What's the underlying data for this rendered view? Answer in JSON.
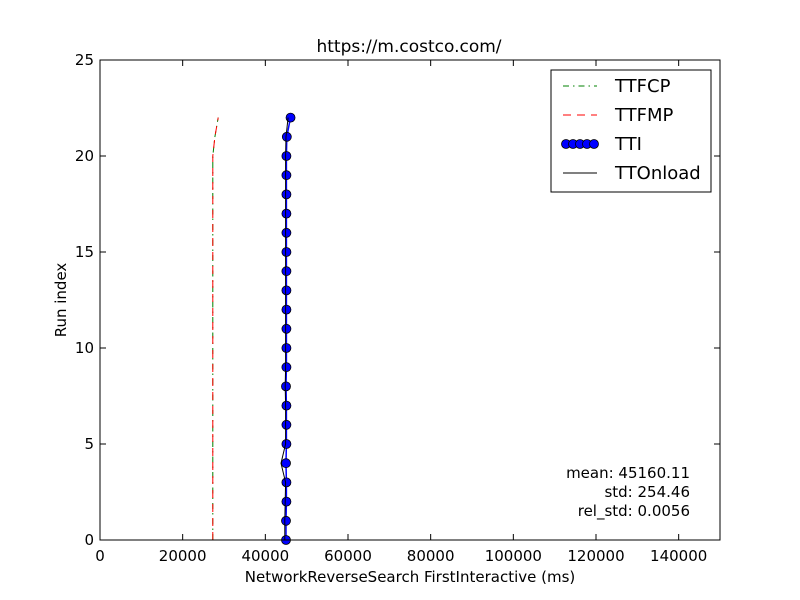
{
  "chart_data": {
    "type": "line",
    "title": "https://m.costco.com/",
    "xlabel": "NetworkReverseSearch FirstInteractive (ms)",
    "ylabel": "Run index",
    "xlim": [
      0,
      150000
    ],
    "ylim": [
      0,
      25
    ],
    "xticks": [
      0,
      20000,
      40000,
      60000,
      80000,
      100000,
      120000,
      140000
    ],
    "yticks": [
      0,
      5,
      10,
      15,
      20,
      25
    ],
    "grid": false,
    "legend_position": "top-right",
    "series": [
      {
        "name": "TTFCP",
        "color": "#008000",
        "style": "dash-dot",
        "x": [
          27300,
          27300,
          27300,
          27300,
          27300,
          27300,
          27300,
          27300,
          27300,
          27300,
          27300,
          27300,
          27300,
          27300,
          27300,
          27300,
          27300,
          27300,
          27300,
          27300,
          27300,
          27800,
          28600
        ],
        "y": [
          0,
          1,
          2,
          3,
          4,
          5,
          6,
          7,
          8,
          9,
          10,
          11,
          12,
          13,
          14,
          15,
          16,
          17,
          18,
          19,
          20,
          21,
          22
        ]
      },
      {
        "name": "TTFMP",
        "color": "#ff0000",
        "style": "dashed",
        "x": [
          27300,
          27300,
          27300,
          27300,
          27300,
          27300,
          27300,
          27300,
          27300,
          27300,
          27300,
          27300,
          27300,
          27300,
          27300,
          27300,
          27300,
          27300,
          27300,
          27300,
          27300,
          27800,
          28600
        ],
        "y": [
          0,
          1,
          2,
          3,
          4,
          5,
          6,
          7,
          8,
          9,
          10,
          11,
          12,
          13,
          14,
          15,
          16,
          17,
          18,
          19,
          20,
          21,
          22
        ]
      },
      {
        "name": "TTI",
        "color": "#0000ff",
        "style": "line-with-circles",
        "x": [
          45000,
          45000,
          45100,
          45100,
          45000,
          45100,
          45100,
          45100,
          45000,
          45100,
          45100,
          45100,
          45100,
          45100,
          45100,
          45100,
          45100,
          45100,
          45100,
          45100,
          45100,
          45200,
          46100
        ],
        "y": [
          0,
          1,
          2,
          3,
          4,
          5,
          6,
          7,
          8,
          9,
          10,
          11,
          12,
          13,
          14,
          15,
          16,
          17,
          18,
          19,
          20,
          21,
          22
        ]
      },
      {
        "name": "TTOnload",
        "color": "#000000",
        "style": "solid",
        "x": [
          44700,
          44700,
          44800,
          44900,
          43800,
          44900,
          44900,
          44900,
          44800,
          44900,
          44900,
          44900,
          44900,
          44900,
          44900,
          44900,
          44900,
          44900,
          44900,
          44900,
          44900,
          45000,
          45500
        ],
        "y": [
          0,
          1,
          2,
          3,
          4,
          5,
          6,
          7,
          8,
          9,
          10,
          11,
          12,
          13,
          14,
          15,
          16,
          17,
          18,
          19,
          20,
          21,
          22
        ]
      }
    ],
    "stats": {
      "mean": "mean: 45160.11",
      "std": "std: 254.46",
      "rel_std": "rel_std: 0.0056"
    }
  }
}
